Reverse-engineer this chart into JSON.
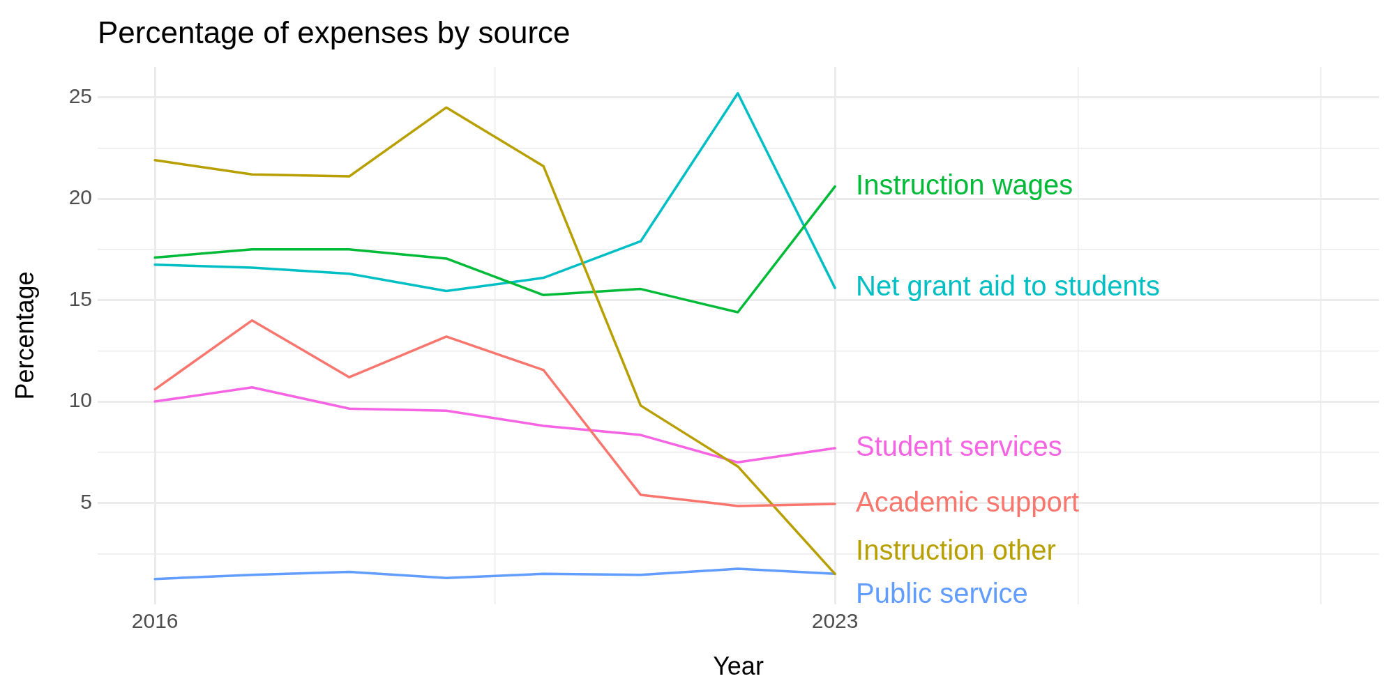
{
  "chart_data": {
    "type": "line",
    "title": "Percentage of expenses by source",
    "xlabel": "Year",
    "ylabel": "Percentage",
    "x": [
      2016,
      2017,
      2018,
      2019,
      2020,
      2021,
      2022,
      2023
    ],
    "xlim": [
      2015.41,
      2028.6
    ],
    "xticks": [
      2016,
      {
        "value": 2019.5,
        "label": null
      },
      2023,
      {
        "value": 2025.5,
        "label": null
      },
      {
        "value": 2028,
        "label": null
      }
    ],
    "ylim": [
      0,
      26.5
    ],
    "yticks": [
      {
        "value": 2.5,
        "label": null
      },
      5,
      {
        "value": 7.5,
        "label": null
      },
      10,
      {
        "value": 12.5,
        "label": null
      },
      15,
      {
        "value": 17.5,
        "label": null
      },
      20,
      {
        "value": 22.5,
        "label": null
      },
      25
    ],
    "grid": true,
    "legend": false,
    "marker": "none",
    "line_style": "solid",
    "series": [
      {
        "name": "Academic support",
        "color": "#f8766d",
        "values": [
          10.6,
          14.0,
          11.2,
          13.2,
          11.55,
          5.4,
          4.85,
          4.95
        ]
      },
      {
        "name": "Instruction other",
        "color": "#b79f00",
        "values": [
          21.9,
          21.2,
          21.1,
          24.5,
          21.6,
          9.8,
          6.8,
          1.5
        ]
      },
      {
        "name": "Instruction wages",
        "color": "#00ba38",
        "values": [
          17.1,
          17.5,
          17.5,
          17.05,
          15.25,
          15.55,
          14.4,
          20.6
        ]
      },
      {
        "name": "Net grant aid to students",
        "color": "#00bfc4",
        "values": [
          16.75,
          16.6,
          16.3,
          15.45,
          16.1,
          17.9,
          25.2,
          15.6
        ]
      },
      {
        "name": "Public service",
        "color": "#619cff",
        "values": [
          1.25,
          1.45,
          1.6,
          1.3,
          1.5,
          1.45,
          1.75,
          1.5
        ]
      },
      {
        "name": "Student services",
        "color": "#f564e3",
        "values": [
          10.0,
          10.7,
          9.65,
          9.55,
          8.8,
          8.35,
          7.0,
          7.7
        ]
      }
    ]
  }
}
